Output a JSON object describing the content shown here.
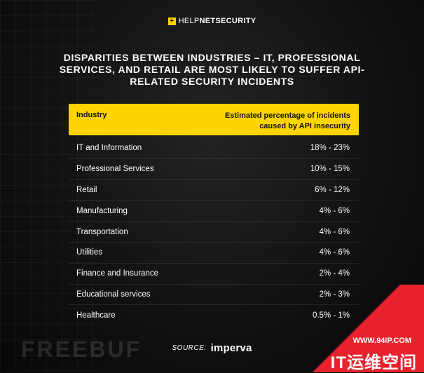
{
  "brand": {
    "mark": "+",
    "name_light": "HELP",
    "name_bold": "NETSECURITY"
  },
  "chart_data": {
    "type": "table",
    "title": "Disparities between industries – IT, professional services, and retail are most likely to suffer API-related security incidents",
    "columns": [
      "Industry",
      "Estimated percentage of incidents caused by API insecurity"
    ],
    "rows": [
      {
        "industry": "IT and Information",
        "range": "18% - 23%"
      },
      {
        "industry": "Professional Services",
        "range": "10% - 15%"
      },
      {
        "industry": "Retail",
        "range": "6% - 12%"
      },
      {
        "industry": "Manufacturing",
        "range": "4% - 6%"
      },
      {
        "industry": "Transportation",
        "range": "4% - 6%"
      },
      {
        "industry": "Utilities",
        "range": "4% - 6%"
      },
      {
        "industry": "Finance and Insurance",
        "range": "2% - 4%"
      },
      {
        "industry": "Educational services",
        "range": "2% - 3%"
      },
      {
        "industry": "Healthcare",
        "range": "0.5% - 1%"
      }
    ],
    "source_label": "SOURCE:",
    "source_name": "imperva"
  },
  "watermarks": {
    "freebuf": "FREEBUF",
    "url": "WWW.94IP.COM",
    "cn": "IT运维空间"
  },
  "colors": {
    "accent": "#ffd400",
    "background": "#0d0d0d",
    "corner": "#e8222c"
  }
}
